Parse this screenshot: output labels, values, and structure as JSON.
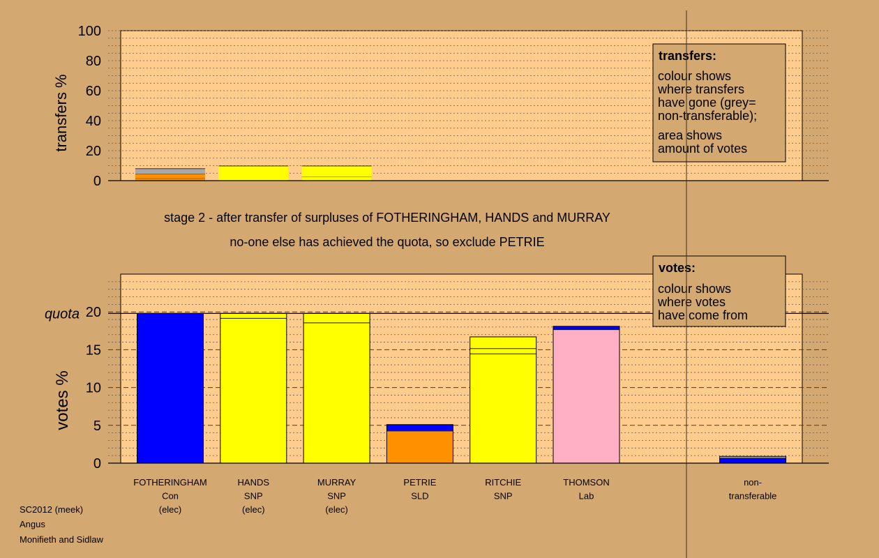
{
  "stage_line1": "stage 2 - after transfer of surpluses of FOTHERINGHAM, HANDS and MURRAY",
  "stage_line2": "no-one else has achieved the quota, so exclude PETRIE",
  "footer": [
    "SC2012 (meek)",
    "Angus",
    "Monifieth and Sidlaw"
  ],
  "colors": {
    "background": "#d4a871",
    "plot_bg": "#ffcc8e",
    "Con": "#0000ff",
    "SNP": "#ffff00",
    "SLD": "#ff9000",
    "Lab": "#ffb0c4",
    "nontransferable": "#a8a8a8",
    "separator": "#1a1a2e"
  },
  "chart_data": [
    {
      "type": "bar",
      "id": "transfers",
      "ylabel": "transfers %",
      "ylim": [
        0,
        100
      ],
      "yticks": [
        0,
        20,
        40,
        60,
        80,
        100
      ],
      "legend": {
        "title": "transfers:",
        "lines1": [
          "colour shows",
          "where transfers",
          "have gone (grey=",
          "non-transferable);"
        ],
        "lines2": [
          "area shows",
          "amount of votes"
        ]
      },
      "bars": [
        {
          "category": "FOTHERINGHAM",
          "segments": [
            {
              "value": 1.5,
              "color": "orange"
            },
            {
              "value": 3.0,
              "color": "orange"
            },
            {
              "value": 3.5,
              "color": "grey"
            }
          ]
        },
        {
          "category": "HANDS",
          "segments": [
            {
              "value": 9.8,
              "color": "yellow"
            }
          ]
        },
        {
          "category": "MURRAY",
          "segments": [
            {
              "value": 2.8,
              "color": "yellow"
            },
            {
              "value": 7.0,
              "color": "yellow"
            }
          ]
        }
      ]
    },
    {
      "type": "bar",
      "id": "votes",
      "ylabel": "votes %",
      "ylim": [
        0,
        25
      ],
      "yticks": [
        0,
        5,
        10,
        15,
        20
      ],
      "quota": 19.8,
      "quota_label": "quota",
      "legend": {
        "title": "votes:",
        "lines1": [
          "colour shows",
          "where votes",
          "have come from"
        ]
      },
      "categories": [
        {
          "name": "FOTHERINGHAM",
          "party": "Con",
          "status": "(elec)"
        },
        {
          "name": "HANDS",
          "party": "SNP",
          "status": "(elec)"
        },
        {
          "name": "MURRAY",
          "party": "SNP",
          "status": "(elec)"
        },
        {
          "name": "PETRIE",
          "party": "SLD",
          "status": ""
        },
        {
          "name": "RITCHIE",
          "party": "SNP",
          "status": ""
        },
        {
          "name": "THOMSON",
          "party": "Lab",
          "status": ""
        },
        {
          "name": "",
          "party": "",
          "status": ""
        },
        {
          "name": "non-",
          "party": "transferable",
          "status": ""
        }
      ],
      "bars": [
        {
          "category": "FOTHERINGHAM",
          "segments": [
            {
              "value": 19.8,
              "color": "blue"
            }
          ]
        },
        {
          "category": "HANDS",
          "segments": [
            {
              "value": 19.2,
              "color": "yellow"
            },
            {
              "value": 0.6,
              "color": "yellow"
            }
          ]
        },
        {
          "category": "MURRAY",
          "segments": [
            {
              "value": 18.6,
              "color": "yellow"
            },
            {
              "value": 1.2,
              "color": "yellow"
            }
          ]
        },
        {
          "category": "PETRIE",
          "segments": [
            {
              "value": 4.3,
              "color": "orange"
            },
            {
              "value": 0.8,
              "color": "blue"
            }
          ]
        },
        {
          "category": "RITCHIE",
          "segments": [
            {
              "value": 14.5,
              "color": "yellow"
            },
            {
              "value": 0.7,
              "color": "yellow"
            },
            {
              "value": 1.5,
              "color": "yellow"
            }
          ]
        },
        {
          "category": "THOMSON",
          "segments": [
            {
              "value": 17.7,
              "color": "pink"
            },
            {
              "value": 0.4,
              "color": "blue"
            }
          ]
        },
        {
          "category": "",
          "segments": []
        },
        {
          "category": "non-transferable",
          "segments": [
            {
              "value": 0.7,
              "color": "blue"
            },
            {
              "value": 0.2,
              "color": "grey"
            }
          ]
        }
      ]
    }
  ]
}
